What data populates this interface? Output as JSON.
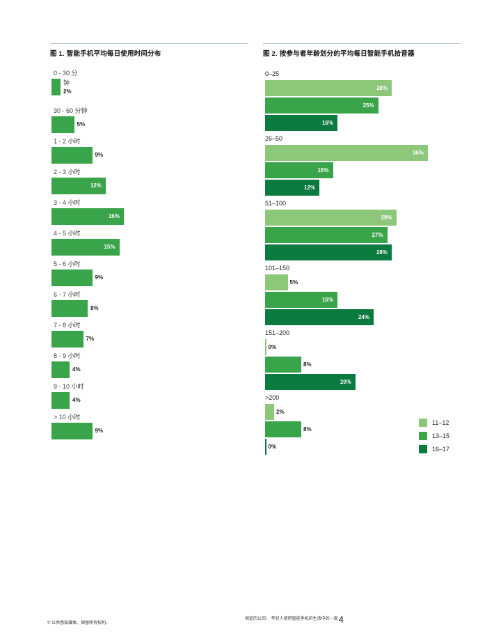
{
  "footer": {
    "copyright": "© 公共感知媒体。保留所有权利。",
    "doc_title": "恒定的公司： 年轻人使用智能手机的生活中的一周",
    "page_number": "4"
  },
  "style": {
    "rule_color": "#BCD3BC",
    "fig1_bar_color": "#39A44A",
    "series_light": "#8DC77A",
    "series_medium": "#39A44A",
    "series_dark": "#0B7A3E"
  },
  "chart_data": [
    {
      "type": "bar",
      "orientation": "horizontal",
      "title": "图 1. 智能手机平均每日使用时间分布",
      "categories": [
        "0 - 30 分钟",
        "30 - 60 分钟",
        "1 - 2 小时",
        "2 - 3 小时",
        "3 - 4 小时",
        "4 - 5 小时",
        "5 - 6 小时",
        "6 - 7 小时",
        "7 - 8 小时",
        "8 - 9 小时",
        "9 - 10 小时",
        "> 10 小时"
      ],
      "values": [
        2,
        5,
        9,
        12,
        16,
        15,
        9,
        8,
        7,
        4,
        4,
        9
      ],
      "unit": "%",
      "bar_color": "#39A44A",
      "xlim": [
        0,
        40
      ],
      "grid": false,
      "value_labels": "inside white when >= 10%, otherwise outside black",
      "first_label_wraps": true
    },
    {
      "type": "bar",
      "orientation": "horizontal",
      "title": "图 2. 按参与者年龄划分的平均每日智能手机拾音器",
      "categories": [
        "0–25",
        "26–50",
        "51–100",
        "101–150",
        "151–200",
        ">200"
      ],
      "series": [
        {
          "name": "11–12",
          "color": "#8DC77A",
          "values": [
            28,
            36,
            29,
            5,
            0,
            2
          ]
        },
        {
          "name": "13–15",
          "color": "#39A44A",
          "values": [
            25,
            15,
            27,
            16,
            8,
            8
          ]
        },
        {
          "name": "16–17",
          "color": "#0B7A3E",
          "values": [
            16,
            12,
            28,
            24,
            20,
            0
          ]
        }
      ],
      "unit": "%",
      "legend_position": "bottom-right",
      "xlim": [
        0,
        40
      ],
      "grid": false,
      "value_labels": "inside white when >= 10%, otherwise outside black"
    }
  ]
}
